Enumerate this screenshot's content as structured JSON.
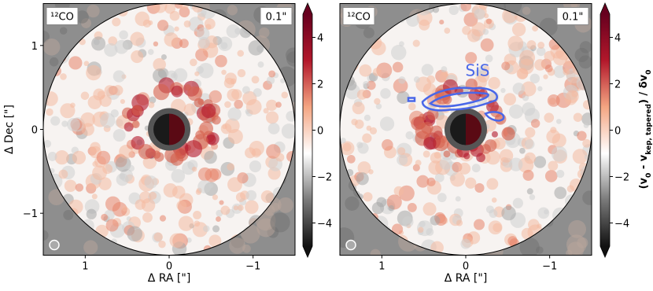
{
  "chart_data": [
    {
      "type": "map",
      "annotations": [
        "¹²CO",
        "0.1\""
      ],
      "xlabel": "Δ RA [\"]",
      "ylabel": "Δ Dec [\"]",
      "xlim": [
        1.5,
        -1.5
      ],
      "ylim": [
        -1.5,
        1.5
      ],
      "xticks": [
        1,
        0,
        {
          "value": -1,
          "label": "−1"
        }
      ],
      "yticks": [
        1,
        0,
        {
          "value": -1,
          "label": "−1"
        }
      ],
      "colorbar": {
        "clim": [
          -5,
          5
        ],
        "ticks": [
          {
            "value": -4,
            "label": "−4"
          },
          {
            "value": -2,
            "label": "−2"
          },
          0,
          2,
          4
        ],
        "colors": [
          "#111111",
          "#7a7a7a",
          "#ffffff",
          "#f4a582",
          "#b2182b",
          "#67001f"
        ]
      }
    },
    {
      "type": "map",
      "annotations": [
        "¹²CO",
        "0.1\"",
        "SiS"
      ],
      "contour_color": "#4a67e8",
      "xlabel": "Δ RA [\"]",
      "xlim": [
        1.5,
        -1.5
      ],
      "ylim": [
        -1.5,
        1.5
      ],
      "xticks": [
        1,
        0,
        {
          "value": -1,
          "label": "−1"
        }
      ],
      "colorbar": {
        "clim": [
          -5,
          5
        ],
        "ticks": [
          {
            "value": -4,
            "label": "−4"
          },
          {
            "value": -2,
            "label": "−2"
          },
          0,
          2,
          4
        ],
        "colors": [
          "#111111",
          "#7a7a7a",
          "#ffffff",
          "#f4a582",
          "#b2182b",
          "#67001f"
        ],
        "label_parts": [
          "(v",
          "0",
          " - v",
          "kep, tapered",
          ") / δv",
          "0"
        ]
      }
    }
  ]
}
